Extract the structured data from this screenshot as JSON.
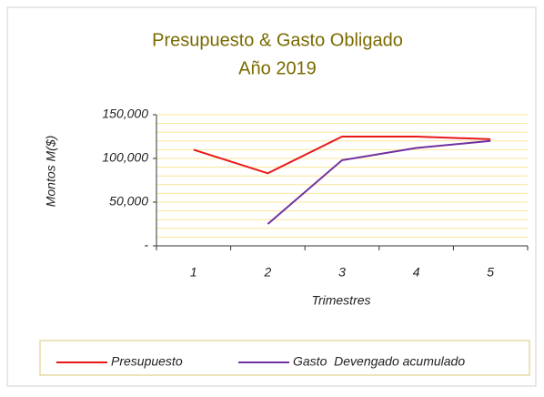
{
  "chart_data": {
    "type": "line",
    "title": "Presupuesto & Gasto Obligado",
    "subtitle": "Año 2019",
    "x_label": "Trimestres",
    "y_label": "Montos  M($)",
    "categories": [
      "1",
      "2",
      "3",
      "4",
      "5"
    ],
    "series": [
      {
        "name": "Presupuesto",
        "color": "#e8191a",
        "values": [
          110000,
          83000,
          125000,
          125000,
          122000
        ]
      },
      {
        "name": "Gasto  Devengado acumulado",
        "color": "#7030a0",
        "values": [
          null,
          25000,
          98000,
          112000,
          120000
        ]
      }
    ],
    "ylim": [
      0,
      150000
    ],
    "yticks": [
      {
        "value": 0,
        "label": "-"
      },
      {
        "value": 50000,
        "label": "50,000"
      },
      {
        "value": 100000,
        "label": "100,000"
      },
      {
        "value": 150000,
        "label": "150,000"
      }
    ],
    "minor_yticks": [
      10000,
      20000,
      30000,
      40000,
      60000,
      70000,
      80000,
      90000,
      110000,
      120000,
      130000,
      140000
    ],
    "grid": true,
    "grid_color": "#fae69a",
    "legend": "bottom"
  }
}
